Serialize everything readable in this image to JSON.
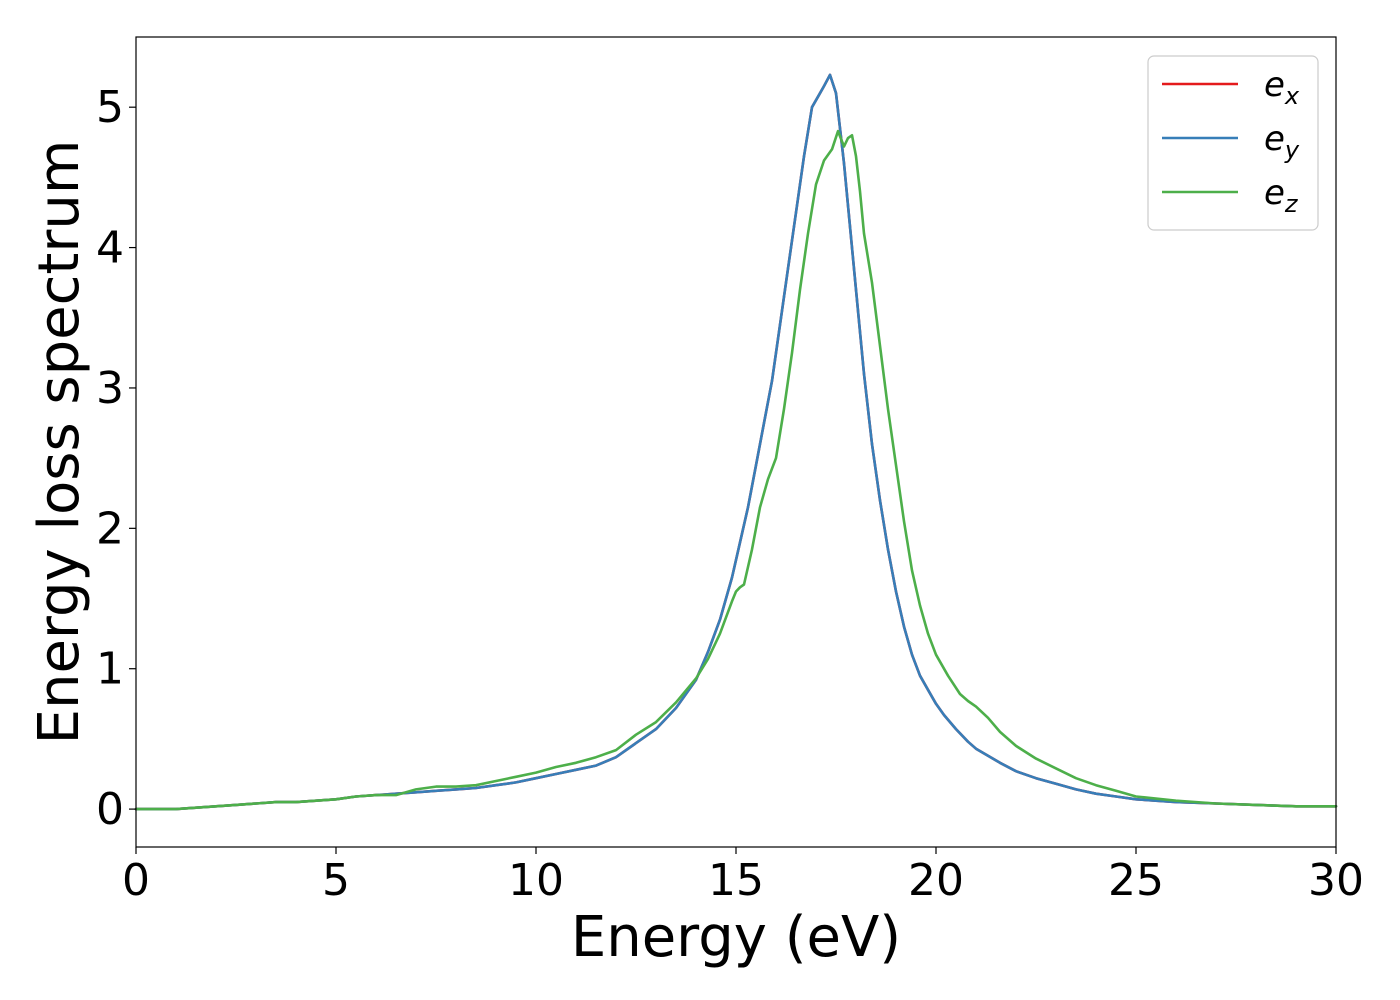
{
  "chart_data": {
    "type": "line",
    "title": "",
    "xlabel": "Energy (eV)",
    "ylabel": "Energy loss spectrum",
    "xlim": [
      0,
      30
    ],
    "ylim": [
      -0.27,
      5.5
    ],
    "xticks": [
      0,
      5,
      10,
      15,
      20,
      25,
      30
    ],
    "yticks": [
      0,
      1,
      2,
      3,
      4,
      5
    ],
    "xtick_labels": [
      "0",
      "5",
      "10",
      "15",
      "20",
      "25",
      "30"
    ],
    "ytick_labels": [
      "0",
      "1",
      "2",
      "3",
      "4",
      "5"
    ],
    "grid": false,
    "legend_position": "top-right",
    "series": [
      {
        "name": "e_x",
        "label_base": "e",
        "label_sub": "x",
        "color": "#e41a1c",
        "x": [
          0,
          1,
          1.5,
          2,
          2.5,
          3,
          3.5,
          4,
          4.5,
          5,
          5.5,
          6,
          6.5,
          7,
          7.5,
          8,
          8.5,
          9,
          9.5,
          10,
          10.5,
          11,
          11.5,
          12,
          12.5,
          13,
          13.5,
          14,
          14.3,
          14.6,
          14.9,
          15.1,
          15.3,
          15.5,
          15.7,
          15.9,
          16.1,
          16.3,
          16.5,
          16.7,
          16.9,
          17.1,
          17.2,
          17.35,
          17.5,
          17.6,
          17.7,
          17.8,
          17.9,
          18.0,
          18.2,
          18.4,
          18.6,
          18.8,
          19.0,
          19.2,
          19.4,
          19.6,
          19.8,
          20.0,
          20.2,
          20.5,
          20.8,
          21.0,
          21.3,
          21.6,
          22.0,
          22.5,
          23.0,
          23.5,
          24.0,
          24.5,
          25,
          26,
          27,
          28,
          29,
          30
        ],
        "y": [
          0,
          0.0,
          0.01,
          0.02,
          0.03,
          0.04,
          0.05,
          0.05,
          0.06,
          0.07,
          0.09,
          0.1,
          0.11,
          0.12,
          0.13,
          0.14,
          0.15,
          0.17,
          0.19,
          0.22,
          0.25,
          0.28,
          0.31,
          0.37,
          0.47,
          0.57,
          0.72,
          0.92,
          1.12,
          1.35,
          1.65,
          1.9,
          2.15,
          2.45,
          2.75,
          3.05,
          3.45,
          3.85,
          4.25,
          4.65,
          5.0,
          5.1,
          5.15,
          5.23,
          5.1,
          4.85,
          4.6,
          4.3,
          4.0,
          3.7,
          3.1,
          2.6,
          2.2,
          1.85,
          1.55,
          1.3,
          1.1,
          0.95,
          0.85,
          0.75,
          0.67,
          0.57,
          0.48,
          0.43,
          0.38,
          0.33,
          0.27,
          0.22,
          0.18,
          0.14,
          0.11,
          0.09,
          0.07,
          0.05,
          0.04,
          0.03,
          0.02,
          0.02
        ]
      },
      {
        "name": "e_y",
        "label_base": "e",
        "label_sub": "y",
        "color": "#377eb8",
        "x": [
          0,
          1,
          1.5,
          2,
          2.5,
          3,
          3.5,
          4,
          4.5,
          5,
          5.5,
          6,
          6.5,
          7,
          7.5,
          8,
          8.5,
          9,
          9.5,
          10,
          10.5,
          11,
          11.5,
          12,
          12.5,
          13,
          13.5,
          14,
          14.3,
          14.6,
          14.9,
          15.1,
          15.3,
          15.5,
          15.7,
          15.9,
          16.1,
          16.3,
          16.5,
          16.7,
          16.9,
          17.1,
          17.2,
          17.35,
          17.5,
          17.6,
          17.7,
          17.8,
          17.9,
          18.0,
          18.2,
          18.4,
          18.6,
          18.8,
          19.0,
          19.2,
          19.4,
          19.6,
          19.8,
          20.0,
          20.2,
          20.5,
          20.8,
          21.0,
          21.3,
          21.6,
          22.0,
          22.5,
          23.0,
          23.5,
          24.0,
          24.5,
          25,
          26,
          27,
          28,
          29,
          30
        ],
        "y": [
          0,
          0.0,
          0.01,
          0.02,
          0.03,
          0.04,
          0.05,
          0.05,
          0.06,
          0.07,
          0.09,
          0.1,
          0.11,
          0.12,
          0.13,
          0.14,
          0.15,
          0.17,
          0.19,
          0.22,
          0.25,
          0.28,
          0.31,
          0.37,
          0.47,
          0.57,
          0.72,
          0.92,
          1.12,
          1.35,
          1.65,
          1.9,
          2.15,
          2.45,
          2.75,
          3.05,
          3.45,
          3.85,
          4.25,
          4.65,
          5.0,
          5.1,
          5.15,
          5.23,
          5.1,
          4.85,
          4.6,
          4.3,
          4.0,
          3.7,
          3.1,
          2.6,
          2.2,
          1.85,
          1.55,
          1.3,
          1.1,
          0.95,
          0.85,
          0.75,
          0.67,
          0.57,
          0.48,
          0.43,
          0.38,
          0.33,
          0.27,
          0.22,
          0.18,
          0.14,
          0.11,
          0.09,
          0.07,
          0.05,
          0.04,
          0.03,
          0.02,
          0.02
        ]
      },
      {
        "name": "e_z",
        "label_base": "e",
        "label_sub": "z",
        "color": "#4daf4a",
        "x": [
          0,
          1,
          1.5,
          2,
          2.5,
          3,
          3.5,
          4,
          4.5,
          5,
          5.5,
          6,
          6.5,
          7,
          7.5,
          8,
          8.5,
          9,
          9.5,
          10,
          10.5,
          11,
          11.5,
          12,
          12.5,
          13,
          13.5,
          14,
          14.3,
          14.6,
          14.9,
          15.0,
          15.1,
          15.2,
          15.4,
          15.6,
          15.8,
          16.0,
          16.2,
          16.4,
          16.6,
          16.8,
          17.0,
          17.2,
          17.4,
          17.55,
          17.7,
          17.8,
          17.9,
          18.0,
          18.1,
          18.2,
          18.4,
          18.6,
          18.8,
          19.0,
          19.2,
          19.4,
          19.6,
          19.8,
          20.0,
          20.3,
          20.6,
          20.8,
          21.0,
          21.3,
          21.6,
          22.0,
          22.5,
          23.0,
          23.5,
          24.0,
          24.5,
          25,
          26,
          27,
          28,
          29,
          30
        ],
        "y": [
          0,
          0.0,
          0.01,
          0.02,
          0.03,
          0.04,
          0.05,
          0.05,
          0.06,
          0.07,
          0.09,
          0.1,
          0.1,
          0.14,
          0.16,
          0.16,
          0.17,
          0.2,
          0.23,
          0.26,
          0.3,
          0.33,
          0.37,
          0.42,
          0.53,
          0.62,
          0.76,
          0.93,
          1.07,
          1.25,
          1.48,
          1.55,
          1.58,
          1.6,
          1.85,
          2.15,
          2.35,
          2.5,
          2.85,
          3.25,
          3.7,
          4.1,
          4.45,
          4.62,
          4.7,
          4.83,
          4.72,
          4.78,
          4.8,
          4.65,
          4.4,
          4.1,
          3.75,
          3.3,
          2.85,
          2.45,
          2.05,
          1.7,
          1.45,
          1.25,
          1.1,
          0.95,
          0.82,
          0.77,
          0.73,
          0.65,
          0.55,
          0.45,
          0.36,
          0.29,
          0.22,
          0.17,
          0.13,
          0.09,
          0.06,
          0.04,
          0.03,
          0.02,
          0.02
        ]
      }
    ]
  }
}
